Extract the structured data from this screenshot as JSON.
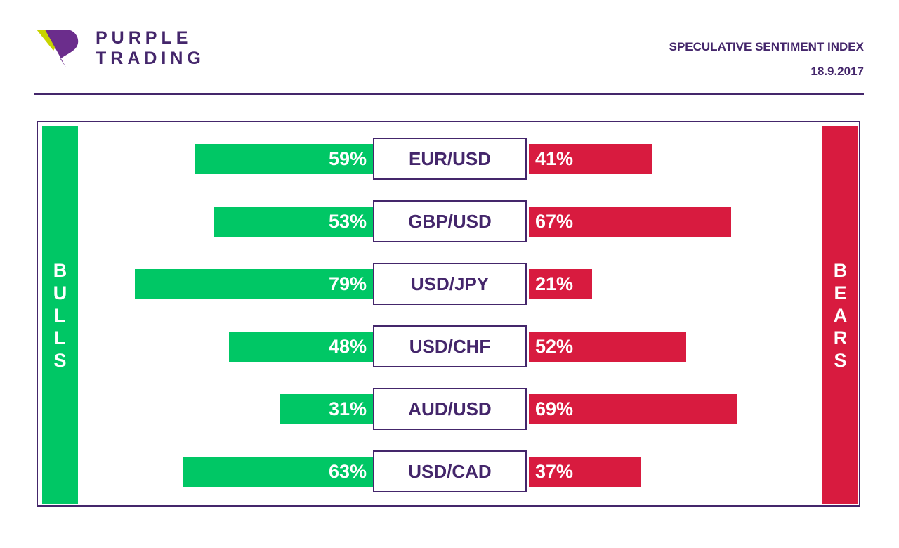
{
  "brand": {
    "line1": "PURPLE",
    "line2": "TRADING"
  },
  "header": {
    "title": "SPECULATIVE SENTIMENT INDEX",
    "date": "18.9.2017"
  },
  "labels": {
    "bulls": "BULLS",
    "bears": "BEARS"
  },
  "colors": {
    "brand": "#44266b",
    "bulls": "#00c765",
    "bears": "#d81b3f"
  },
  "chart_data": {
    "type": "bar",
    "categories": [
      "EUR/USD",
      "GBP/USD",
      "USD/JPY",
      "USD/CHF",
      "AUD/USD",
      "USD/CAD"
    ],
    "series": [
      {
        "name": "BULLS",
        "values": [
          59,
          53,
          79,
          48,
          31,
          63
        ],
        "labels": [
          "59%",
          "53%",
          "79%",
          "48%",
          "31%",
          "63%"
        ]
      },
      {
        "name": "BEARS",
        "values": [
          41,
          67,
          21,
          52,
          69,
          37
        ],
        "labels": [
          "41%",
          "67%",
          "21%",
          "52%",
          "69%",
          "37%"
        ]
      }
    ]
  }
}
